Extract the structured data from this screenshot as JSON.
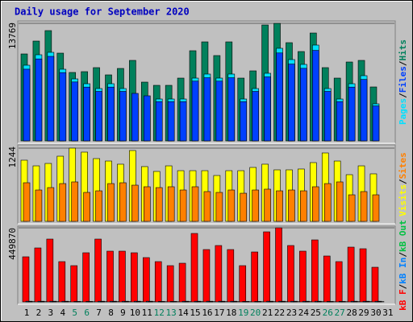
{
  "title": "Daily usage for September 2020",
  "legend_separator": "/",
  "chart_data": [
    {
      "type": "bar",
      "ylim": [
        0,
        13769
      ],
      "yticks": [
        13769
      ],
      "grid": true,
      "series": [
        {
          "name": "Hits",
          "color": "#00805c",
          "values": [
            10185,
            11693,
            12919,
            10279,
            8016,
            8110,
            8581,
            7733,
            8487,
            9430,
            6884,
            6507,
            6507,
            7355,
            10562,
            11599,
            9996,
            11599,
            7355,
            8204,
            13579,
            13769,
            11505,
            10467,
            12636,
            8581,
            7355,
            9241,
            9430,
            6318,
            0
          ]
        },
        {
          "name": "Files",
          "color": "#0040ff",
          "values": [
            8400,
            9600,
            9900,
            8000,
            6900,
            6300,
            5800,
            6300,
            5800,
            5564,
            5281,
            4600,
            4600,
            4600,
            7000,
            7400,
            7000,
            7400,
            4600,
            5800,
            7500,
            10300,
            9000,
            8500,
            10600,
            5800,
            4600,
            6300,
            7200,
            4100,
            0
          ]
        },
        {
          "name": "Pages",
          "color": "#00e0ff",
          "values": [
            8864,
            10090,
            10373,
            8393,
            7261,
            6695,
            6130,
            6695,
            6130,
            4998,
            4244,
            4904,
            4904,
            4904,
            7355,
            7827,
            7355,
            7827,
            4904,
            6130,
            7921,
            10845,
            9524,
            8959,
            11222,
            6130,
            4904,
            6695,
            7638,
            4338,
            0
          ]
        }
      ]
    },
    {
      "type": "bar",
      "ylim": [
        0,
        1244
      ],
      "yticks": [
        1244
      ],
      "grid": true,
      "series": [
        {
          "name": "Visits",
          "color": "#ffff00",
          "values": [
            1039,
            943,
            984,
            1107,
            1244,
            1176,
            1066,
            1025,
            971,
            1203,
            930,
            848,
            943,
            861,
            861,
            861,
            779,
            861,
            861,
            916,
            971,
            875,
            875,
            889,
            998,
            1162,
            1025,
            793,
            943,
            807,
            0
          ]
        },
        {
          "name": "Sites",
          "color": "#ff8000",
          "values": [
            656,
            533,
            574,
            642,
            670,
            492,
            519,
            642,
            656,
            615,
            588,
            574,
            588,
            533,
            588,
            506,
            492,
            533,
            478,
            533,
            547,
            519,
            533,
            519,
            588,
            642,
            670,
            451,
            506,
            451,
            0
          ]
        }
      ]
    },
    {
      "type": "bar",
      "ylim": [
        0,
        449870
      ],
      "yticks": [
        449870
      ],
      "grid": true,
      "categories": [
        "1",
        "2",
        "3",
        "4",
        "5",
        "6",
        "7",
        "8",
        "9",
        "10",
        "11",
        "12",
        "13",
        "14",
        "15",
        "16",
        "17",
        "18",
        "19",
        "20",
        "21",
        "22",
        "23",
        "24",
        "25",
        "26",
        "27",
        "28",
        "29",
        "30",
        "31"
      ],
      "category_colors": [
        "#000000",
        "#000000",
        "#000000",
        "#000000",
        "#00805c",
        "#00805c",
        "#000000",
        "#000000",
        "#000000",
        "#000000",
        "#000000",
        "#00805c",
        "#00805c",
        "#000000",
        "#000000",
        "#000000",
        "#000000",
        "#000000",
        "#00805c",
        "#00805c",
        "#000000",
        "#000000",
        "#000000",
        "#000000",
        "#000000",
        "#00805c",
        "#00805c",
        "#000000",
        "#000000",
        "#000000",
        "#000000"
      ],
      "series": [
        {
          "name": "kB F",
          "color": "#ff0000",
          "values": [
            273840,
            327630,
            381420,
            244500,
            220050,
            298290,
            381420,
            308070,
            308070,
            298290,
            268950,
            244500,
            220050,
            234720,
            415650,
            317850,
            342300,
            317850,
            220050,
            303180,
            425430,
            449870,
            342300,
            308070,
            376530,
            278730,
            244500,
            332520,
            322740,
            210270,
            0
          ]
        },
        {
          "name": "kB In",
          "color": "#0080ff",
          "values": [
            4000,
            4000,
            4000,
            4000,
            3000,
            3000,
            4000,
            4000,
            4000,
            4000,
            4000,
            3000,
            3000,
            4000,
            4000,
            4000,
            4000,
            4000,
            3000,
            3000,
            4000,
            4000,
            4000,
            4000,
            4000,
            3000,
            3000,
            4000,
            4000,
            4000,
            0
          ]
        },
        {
          "name": "kB Out",
          "color": "#00c040",
          "values": [
            2000,
            2000,
            2000,
            2000,
            1500,
            1500,
            2000,
            2000,
            2000,
            2000,
            2000,
            1500,
            1500,
            2000,
            2000,
            2000,
            2000,
            2000,
            1500,
            1500,
            2000,
            2000,
            2000,
            2000,
            2000,
            1500,
            1500,
            2000,
            2000,
            2000,
            0
          ]
        }
      ]
    }
  ]
}
